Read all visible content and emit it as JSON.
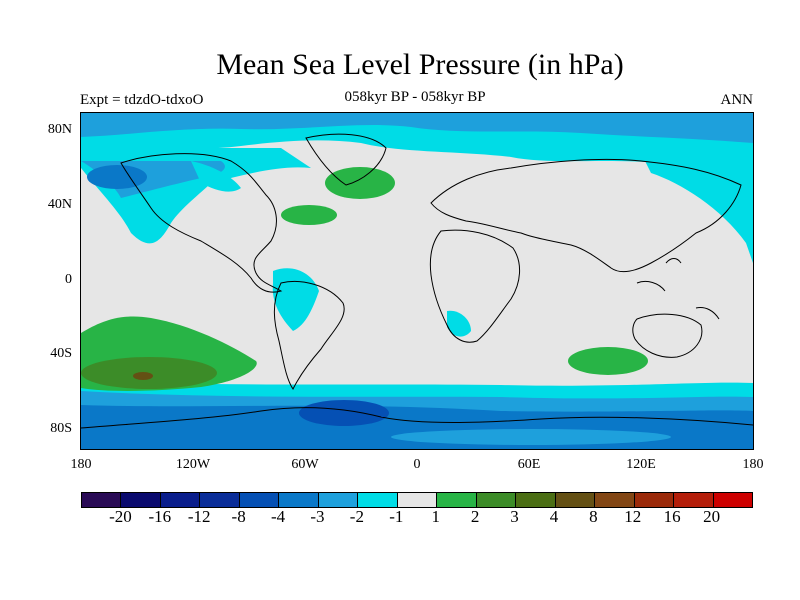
{
  "title": "Mean Sea Level Pressure (in hPa)",
  "subtitle": "058kyr BP - 058kyr BP",
  "left_label": "Expt = tdzdO-tdxoO",
  "right_label": "ANN",
  "map": {
    "projection": "cylindrical equidistant",
    "lon_range": [
      -180,
      180
    ],
    "lat_range": [
      -90,
      90
    ],
    "y_ticks": [
      "80N",
      "40N",
      "0",
      "40S",
      "80S"
    ],
    "x_ticks": [
      "180",
      "120W",
      "60W",
      "0",
      "60E",
      "120E",
      "180"
    ],
    "background_color": "#e6e6e6",
    "coastline_color": "#000000"
  },
  "colorbar": {
    "colors": [
      "#2a0b56",
      "#0a0a6e",
      "#0a1e8c",
      "#0a2d99",
      "#0550b4",
      "#0a78c8",
      "#1ea0dc",
      "#00dce6",
      "#e6e6e6",
      "#28b446",
      "#3c8c28",
      "#4b6e14",
      "#645014",
      "#824614",
      "#9b2a0a",
      "#b41e0a",
      "#cd0000"
    ],
    "labels": [
      "-20",
      "-16",
      "-12",
      "-8",
      "-4",
      "-3",
      "-2",
      "-1",
      "1",
      "2",
      "3",
      "4",
      "8",
      "12",
      "16",
      "20"
    ]
  },
  "legend_colors": {
    "cyan": "#00dce6",
    "mid_blue": "#1ea0dc",
    "dark_blue": "#0a78c8",
    "deep_blue": "#0550b4",
    "green": "#28b446",
    "olive": "#3c8c28",
    "brown": "#645014"
  }
}
